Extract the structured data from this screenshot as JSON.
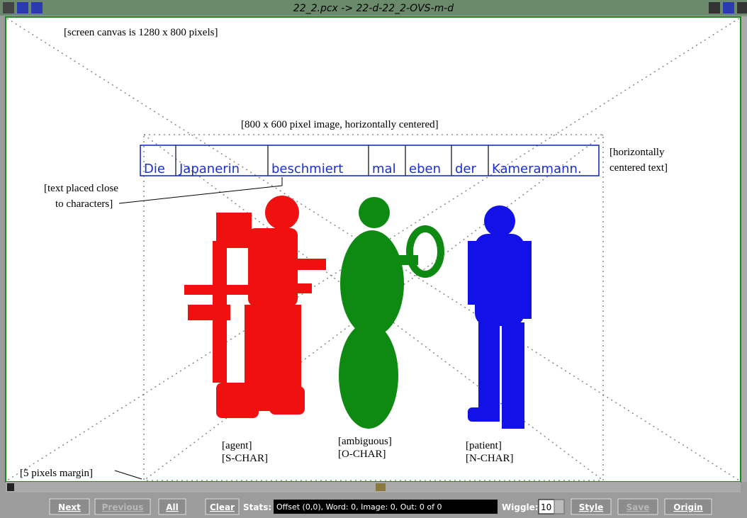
{
  "window": {
    "title": "22_2.pcx -> 22-d-22_2-OVS-m-d"
  },
  "annotations": {
    "canvas": "[screen canvas is 1280 x 800 pixels]",
    "image": "[800 x 600 pixel image, horizontally centered]",
    "centered_text": [
      "[horizontally",
      "centered text]"
    ],
    "text_placement": [
      "[text placed close",
      "to characters]"
    ],
    "margin": "[5 pixels margin]"
  },
  "words": [
    "Die",
    "Japanerin",
    "beschmiert",
    "mal",
    "eben",
    "der",
    "Kameramann."
  ],
  "figures": [
    {
      "role": "[agent]",
      "char": "[S-CHAR]"
    },
    {
      "role": "[ambiguous]",
      "char": "[O-CHAR]"
    },
    {
      "role": "[patient]",
      "char": "[N-CHAR]"
    }
  ],
  "toolbar": {
    "buttons": [
      "Next",
      "Previous",
      "All",
      "Clear"
    ],
    "stats_label": "Stats:",
    "stats_value": "Offset (0,0), Word: 0, Image: 0, Out: 0 of 0",
    "wiggle_label": "Wiggle:",
    "wiggle_value": "10",
    "buttons_right": [
      "Style",
      "Save",
      "Origin"
    ]
  }
}
